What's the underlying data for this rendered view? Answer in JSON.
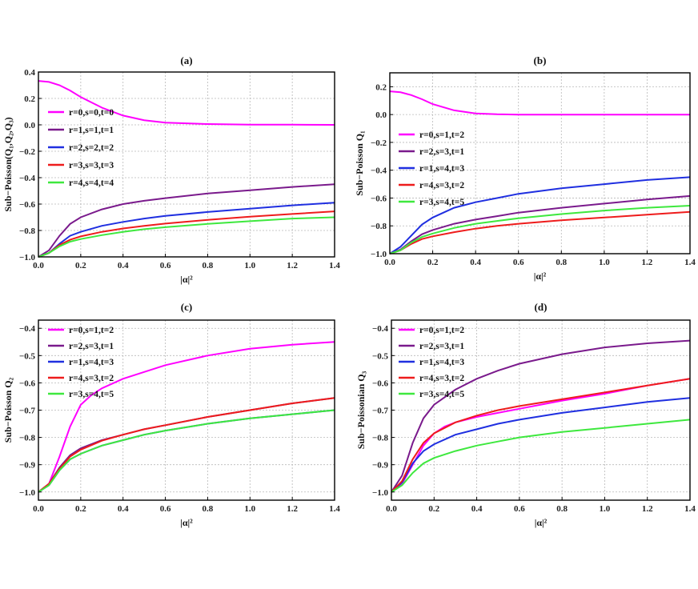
{
  "chart_data": [
    {
      "type": "line",
      "title": "(a)",
      "xlabel": "|α|²",
      "ylabel": "Sub−Poisson(Q₁,Q₂,Q₃)",
      "xlim": [
        0,
        1.4
      ],
      "ylim": [
        -1.0,
        0.4
      ],
      "xticks": [
        "0.0",
        "0.2",
        "0.4",
        "0.6",
        "0.8",
        "1.0",
        "1.2",
        "1.4"
      ],
      "yticks": [
        "0.4",
        "0.2",
        "0.0",
        "−0.2",
        "−0.4",
        "−0.6",
        "−0.8",
        "−1.0"
      ],
      "legend_position": "left",
      "series": [
        {
          "name": "r=0,s=0,t=0",
          "color": "#ff00ff",
          "x": [
            0,
            0.05,
            0.1,
            0.15,
            0.2,
            0.3,
            0.4,
            0.5,
            0.6,
            0.8,
            1.0,
            1.2,
            1.4
          ],
          "y": [
            0.333,
            0.325,
            0.3,
            0.26,
            0.21,
            0.13,
            0.07,
            0.035,
            0.017,
            0.006,
            0.002,
            0.001,
            0.0
          ]
        },
        {
          "name": "r=1,s=1,t=1",
          "color": "#7a1a8c",
          "x": [
            0,
            0.05,
            0.1,
            0.15,
            0.2,
            0.3,
            0.4,
            0.5,
            0.6,
            0.8,
            1.0,
            1.2,
            1.4
          ],
          "y": [
            -1.0,
            -0.95,
            -0.84,
            -0.75,
            -0.7,
            -0.64,
            -0.6,
            -0.575,
            -0.555,
            -0.52,
            -0.495,
            -0.47,
            -0.45
          ]
        },
        {
          "name": "r=2,s=2,t=2",
          "color": "#1f2fe0",
          "x": [
            0,
            0.05,
            0.1,
            0.15,
            0.2,
            0.3,
            0.4,
            0.5,
            0.6,
            0.8,
            1.0,
            1.2,
            1.4
          ],
          "y": [
            -1.0,
            -0.97,
            -0.9,
            -0.84,
            -0.81,
            -0.765,
            -0.735,
            -0.71,
            -0.69,
            -0.66,
            -0.635,
            -0.61,
            -0.59
          ]
        },
        {
          "name": "r=3,s=3,t=3",
          "color": "#ee1c1c",
          "x": [
            0,
            0.05,
            0.1,
            0.15,
            0.2,
            0.3,
            0.4,
            0.5,
            0.6,
            0.8,
            1.0,
            1.2,
            1.4
          ],
          "y": [
            -1.0,
            -0.97,
            -0.91,
            -0.87,
            -0.845,
            -0.81,
            -0.785,
            -0.765,
            -0.748,
            -0.72,
            -0.695,
            -0.675,
            -0.655
          ]
        },
        {
          "name": "r=4,s=4,t=4",
          "color": "#3ee83e",
          "x": [
            0,
            0.05,
            0.1,
            0.15,
            0.2,
            0.3,
            0.4,
            0.5,
            0.6,
            0.8,
            1.0,
            1.2,
            1.4
          ],
          "y": [
            -1.0,
            -0.97,
            -0.92,
            -0.885,
            -0.865,
            -0.835,
            -0.81,
            -0.79,
            -0.775,
            -0.75,
            -0.73,
            -0.71,
            -0.7
          ]
        }
      ]
    },
    {
      "type": "line",
      "title": "(b)",
      "xlabel": "|α|²",
      "ylabel": "Sub−Poisson Q₁",
      "xlim": [
        0,
        1.4
      ],
      "ylim": [
        -1.0,
        0.3
      ],
      "xticks": [
        "0.0",
        "0.2",
        "0.4",
        "0.6",
        "0.8",
        "1.0",
        "1.2",
        "1.4"
      ],
      "yticks": [
        "0.2",
        "0.0",
        "−0.2",
        "−0.4",
        "−0.6",
        "−0.8",
        "−1.0"
      ],
      "legend_position": "left",
      "series": [
        {
          "name": "r=0,s=1,t=2",
          "color": "#ff00ff",
          "x": [
            0,
            0.05,
            0.1,
            0.15,
            0.2,
            0.3,
            0.4,
            0.5,
            0.6,
            0.8,
            1.0,
            1.2,
            1.4
          ],
          "y": [
            0.167,
            0.16,
            0.14,
            0.11,
            0.075,
            0.03,
            0.008,
            0.002,
            0.0,
            0.0,
            0.0,
            0.0,
            0.0
          ]
        },
        {
          "name": "r=2,s=3,t=1",
          "color": "#7a1a8c",
          "x": [
            0,
            0.05,
            0.1,
            0.15,
            0.2,
            0.3,
            0.4,
            0.5,
            0.6,
            0.8,
            1.0,
            1.2,
            1.4
          ],
          "y": [
            -1.0,
            -0.97,
            -0.91,
            -0.86,
            -0.83,
            -0.785,
            -0.755,
            -0.73,
            -0.705,
            -0.67,
            -0.64,
            -0.61,
            -0.585
          ]
        },
        {
          "name": "r=1,s=4,t=3",
          "color": "#1f2fe0",
          "x": [
            0,
            0.05,
            0.1,
            0.15,
            0.2,
            0.3,
            0.4,
            0.5,
            0.6,
            0.8,
            1.0,
            1.2,
            1.4
          ],
          "y": [
            -1.0,
            -0.95,
            -0.87,
            -0.79,
            -0.74,
            -0.67,
            -0.63,
            -0.6,
            -0.57,
            -0.53,
            -0.5,
            -0.47,
            -0.45
          ]
        },
        {
          "name": "r=4,s=3,t=2",
          "color": "#ee1c1c",
          "x": [
            0,
            0.05,
            0.1,
            0.15,
            0.2,
            0.3,
            0.4,
            0.5,
            0.6,
            0.8,
            1.0,
            1.2,
            1.4
          ],
          "y": [
            -1.0,
            -0.975,
            -0.93,
            -0.895,
            -0.875,
            -0.845,
            -0.82,
            -0.8,
            -0.785,
            -0.76,
            -0.74,
            -0.72,
            -0.7
          ]
        },
        {
          "name": "r=3,s=4,t=5",
          "color": "#3ee83e",
          "x": [
            0,
            0.05,
            0.1,
            0.15,
            0.2,
            0.3,
            0.4,
            0.5,
            0.6,
            0.8,
            1.0,
            1.2,
            1.4
          ],
          "y": [
            -1.0,
            -0.975,
            -0.92,
            -0.88,
            -0.855,
            -0.815,
            -0.785,
            -0.765,
            -0.745,
            -0.715,
            -0.69,
            -0.67,
            -0.655
          ]
        }
      ]
    },
    {
      "type": "line",
      "title": "(c)",
      "xlabel": "|α|²",
      "ylabel": "Sub−Poisson Q₂",
      "xlim": [
        0,
        1.4
      ],
      "ylim": [
        -1.03,
        -0.37
      ],
      "xticks": [
        "0.0",
        "0.2",
        "0.4",
        "0.6",
        "0.8",
        "1.0",
        "1.2",
        "1.4"
      ],
      "yticks": [
        "−0.4",
        "−0.5",
        "−0.6",
        "−0.7",
        "−0.8",
        "−0.9",
        "−1.0"
      ],
      "legend_position": "top-left",
      "series": [
        {
          "name": "r=0,s=1,t=2",
          "color": "#ff00ff",
          "x": [
            0,
            0.05,
            0.1,
            0.15,
            0.2,
            0.25,
            0.3,
            0.4,
            0.5,
            0.6,
            0.8,
            1.0,
            1.2,
            1.4
          ],
          "y": [
            -1.0,
            -0.97,
            -0.87,
            -0.76,
            -0.68,
            -0.645,
            -0.62,
            -0.585,
            -0.56,
            -0.535,
            -0.5,
            -0.475,
            -0.46,
            -0.45
          ]
        },
        {
          "name": "r=2,s=3,t=1",
          "color": "#7a1a8c",
          "x": [
            0,
            0.05,
            0.1,
            0.15,
            0.2,
            0.3,
            0.4,
            0.5,
            0.6,
            0.8,
            1.0,
            1.2,
            1.4
          ],
          "y": [
            -1.0,
            -0.97,
            -0.91,
            -0.865,
            -0.84,
            -0.81,
            -0.79,
            -0.77,
            -0.755,
            -0.725,
            -0.7,
            -0.675,
            -0.655
          ]
        },
        {
          "name": "r=1,s=4,t=3",
          "color": "#1f2fe0",
          "x": [
            0,
            0.05,
            0.1,
            0.15,
            0.2,
            0.3,
            0.4,
            0.5,
            0.6,
            0.8,
            1.0,
            1.2,
            1.4
          ],
          "y": [
            -1.0,
            -0.975,
            -0.92,
            -0.88,
            -0.86,
            -0.83,
            -0.81,
            -0.79,
            -0.775,
            -0.75,
            -0.73,
            -0.715,
            -0.7
          ]
        },
        {
          "name": "r=4,s=3,t=2",
          "color": "#ee1c1c",
          "x": [
            0,
            0.05,
            0.1,
            0.15,
            0.2,
            0.3,
            0.4,
            0.5,
            0.6,
            0.8,
            1.0,
            1.2,
            1.4
          ],
          "y": [
            -1.0,
            -0.97,
            -0.915,
            -0.87,
            -0.845,
            -0.812,
            -0.79,
            -0.77,
            -0.755,
            -0.725,
            -0.7,
            -0.675,
            -0.655
          ]
        },
        {
          "name": "r=3,s=4,t=5",
          "color": "#3ee83e",
          "x": [
            0,
            0.05,
            0.1,
            0.15,
            0.2,
            0.3,
            0.4,
            0.5,
            0.6,
            0.8,
            1.0,
            1.2,
            1.4
          ],
          "y": [
            -1.0,
            -0.975,
            -0.92,
            -0.88,
            -0.86,
            -0.83,
            -0.81,
            -0.79,
            -0.775,
            -0.75,
            -0.73,
            -0.715,
            -0.7
          ]
        }
      ]
    },
    {
      "type": "line",
      "title": "(d)",
      "xlabel": "|α|²",
      "ylabel": "Sub−Poissonian Q₃",
      "xlim": [
        0,
        1.4
      ],
      "ylim": [
        -1.03,
        -0.37
      ],
      "xticks": [
        "0.0",
        "0.2",
        "0.4",
        "0.6",
        "0.8",
        "1.0",
        "1.2",
        "1.4"
      ],
      "yticks": [
        "−0.4",
        "−0.5",
        "−0.6",
        "−0.7",
        "−0.8",
        "−0.9",
        "−1.0"
      ],
      "legend_position": "top-left",
      "series": [
        {
          "name": "r=0,s=1,t=2",
          "color": "#ff00ff",
          "x": [
            0,
            0.05,
            0.1,
            0.15,
            0.2,
            0.25,
            0.3,
            0.4,
            0.5,
            0.6,
            0.8,
            1.0,
            1.2,
            1.4
          ],
          "y": [
            -1.0,
            -0.97,
            -0.9,
            -0.83,
            -0.785,
            -0.76,
            -0.745,
            -0.725,
            -0.71,
            -0.695,
            -0.665,
            -0.64,
            -0.61,
            -0.585
          ]
        },
        {
          "name": "r=2,s=3,t=1",
          "color": "#7a1a8c",
          "x": [
            0,
            0.05,
            0.1,
            0.15,
            0.2,
            0.3,
            0.4,
            0.5,
            0.6,
            0.8,
            1.0,
            1.2,
            1.4
          ],
          "y": [
            -1.0,
            -0.94,
            -0.82,
            -0.73,
            -0.68,
            -0.625,
            -0.585,
            -0.555,
            -0.53,
            -0.495,
            -0.47,
            -0.455,
            -0.445
          ]
        },
        {
          "name": "r=1,s=4,t=3",
          "color": "#1f2fe0",
          "x": [
            0,
            0.05,
            0.1,
            0.15,
            0.2,
            0.3,
            0.4,
            0.5,
            0.6,
            0.8,
            1.0,
            1.2,
            1.4
          ],
          "y": [
            -1.0,
            -0.965,
            -0.895,
            -0.85,
            -0.825,
            -0.79,
            -0.77,
            -0.75,
            -0.735,
            -0.71,
            -0.69,
            -0.67,
            -0.655
          ]
        },
        {
          "name": "r=4,s=3,t=2",
          "color": "#ee1c1c",
          "x": [
            0,
            0.05,
            0.1,
            0.15,
            0.2,
            0.3,
            0.4,
            0.5,
            0.6,
            0.8,
            1.0,
            1.2,
            1.4
          ],
          "y": [
            -1.0,
            -0.96,
            -0.88,
            -0.82,
            -0.785,
            -0.745,
            -0.72,
            -0.7,
            -0.685,
            -0.66,
            -0.635,
            -0.61,
            -0.585
          ]
        },
        {
          "name": "r=3,s=4,t=5",
          "color": "#3ee83e",
          "x": [
            0,
            0.05,
            0.1,
            0.15,
            0.2,
            0.3,
            0.4,
            0.5,
            0.6,
            0.8,
            1.0,
            1.2,
            1.4
          ],
          "y": [
            -1.0,
            -0.975,
            -0.93,
            -0.895,
            -0.875,
            -0.85,
            -0.83,
            -0.815,
            -0.8,
            -0.78,
            -0.765,
            -0.75,
            -0.735
          ]
        }
      ]
    }
  ]
}
